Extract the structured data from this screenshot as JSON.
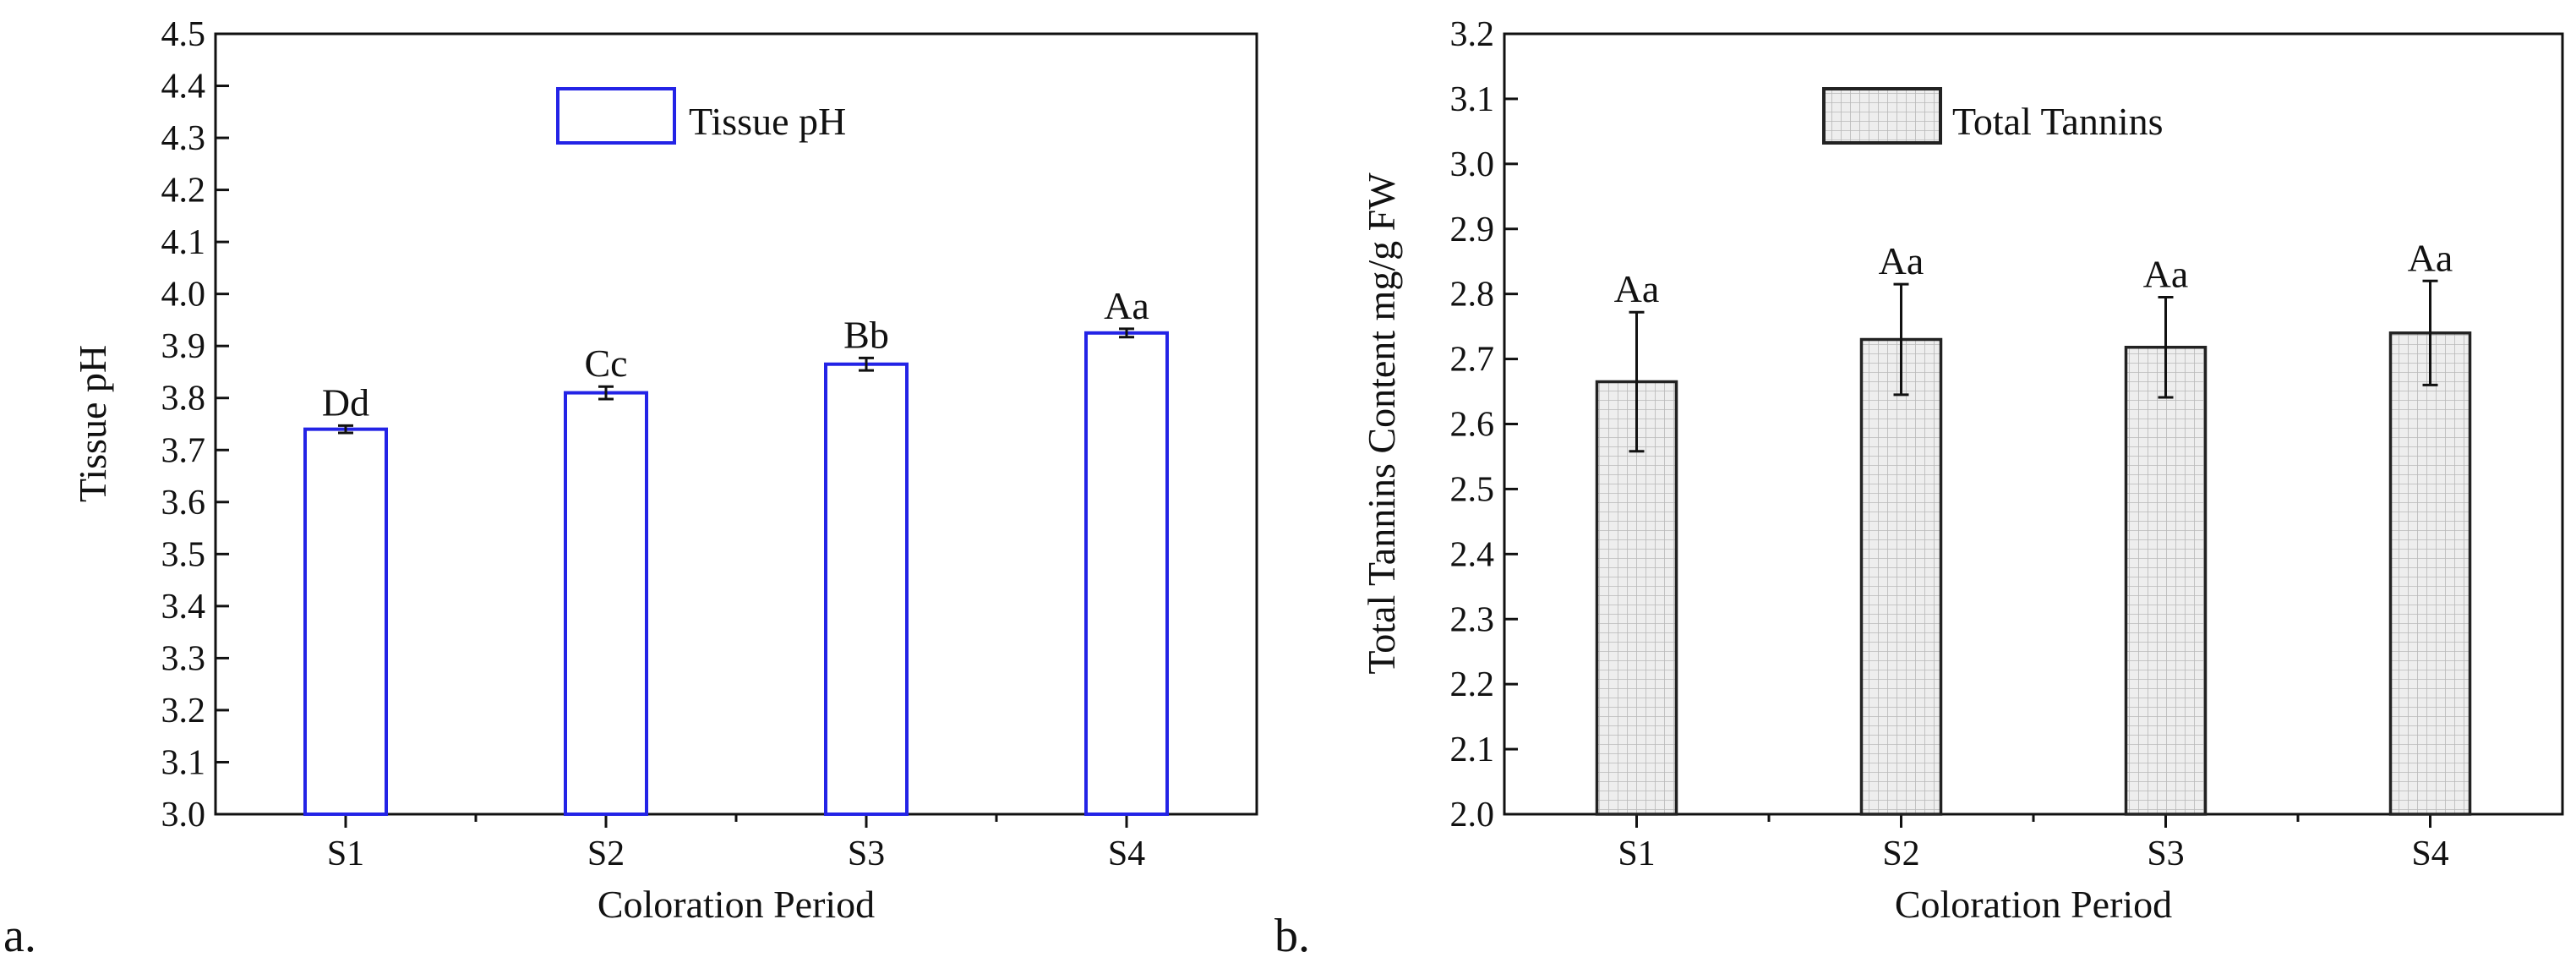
{
  "chart_data": [
    {
      "type": "bar",
      "panel_label": "a.",
      "categories": [
        "S1",
        "S2",
        "S3",
        "S4"
      ],
      "values": [
        3.74,
        3.81,
        3.865,
        3.925
      ],
      "errors": [
        0.007,
        0.012,
        0.012,
        0.008
      ],
      "significance": [
        "Dd",
        "Cc",
        "Bb",
        "Aa"
      ],
      "legend": "Tissue pH",
      "legend_position": "top-center",
      "xlabel": "Coloration Period",
      "ylabel": "Tissue pH",
      "ylim": [
        3.0,
        4.5
      ],
      "yticks": [
        "3.0",
        "3.1",
        "3.2",
        "3.3",
        "3.4",
        "3.5",
        "3.6",
        "3.7",
        "3.8",
        "3.9",
        "4.0",
        "4.1",
        "4.2",
        "4.3",
        "4.4",
        "4.5"
      ],
      "grid": false,
      "bar_style": "outline",
      "bar_color": "#2323e6"
    },
    {
      "type": "bar",
      "panel_label": "b.",
      "categories": [
        "S1",
        "S2",
        "S3",
        "S4"
      ],
      "values": [
        2.665,
        2.73,
        2.718,
        2.74
      ],
      "errors": [
        0.107,
        0.085,
        0.077,
        0.08
      ],
      "significance": [
        "Aa",
        "Aa",
        "Aa",
        "Aa"
      ],
      "legend": "Total Tannins",
      "legend_position": "top-center",
      "xlabel": "Coloration Period",
      "ylabel": "Total Tannins Content mg/g FW",
      "ylim": [
        2.0,
        3.2
      ],
      "yticks": [
        "2.0",
        "2.1",
        "2.2",
        "2.3",
        "2.4",
        "2.5",
        "2.6",
        "2.7",
        "2.8",
        "2.9",
        "3.0",
        "3.1",
        "3.2"
      ],
      "grid": false,
      "bar_style": "grid-pattern",
      "bar_color": "#333333"
    }
  ]
}
